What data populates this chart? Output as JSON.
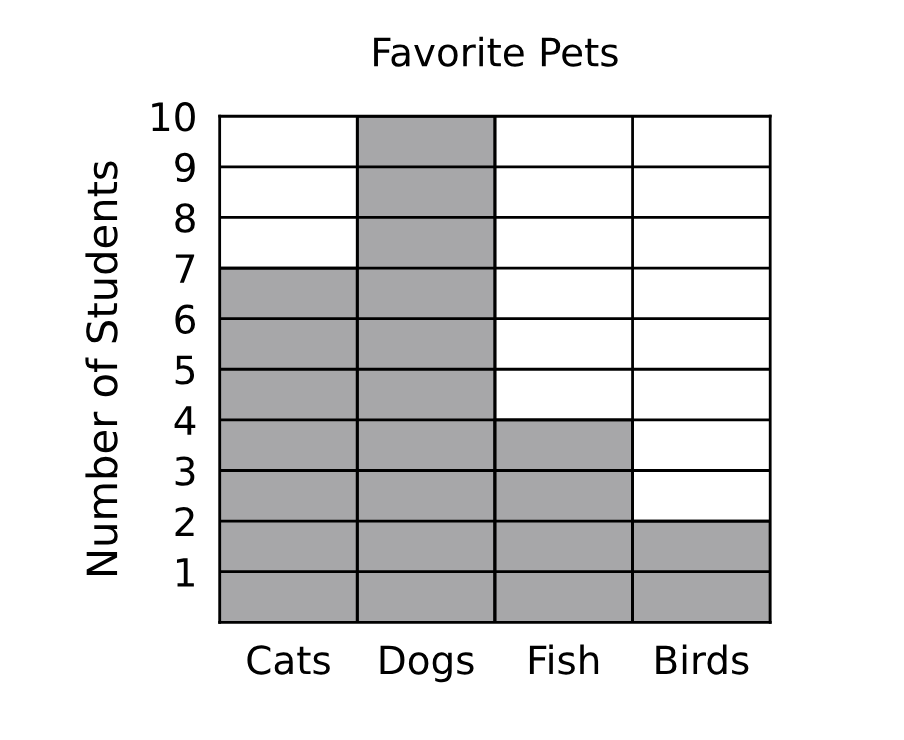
{
  "chart_data": {
    "type": "bar",
    "title": "Favorite Pets",
    "ylabel": "Number of Students",
    "categories": [
      "Cats",
      "Dogs",
      "Fish",
      "Birds"
    ],
    "values": [
      7,
      10,
      4,
      2
    ],
    "color": "#a7a7a9",
    "ylim": [
      0,
      10
    ],
    "yticks": [
      1,
      2,
      3,
      4,
      5,
      6,
      7,
      8,
      9,
      10
    ],
    "grid": true
  }
}
